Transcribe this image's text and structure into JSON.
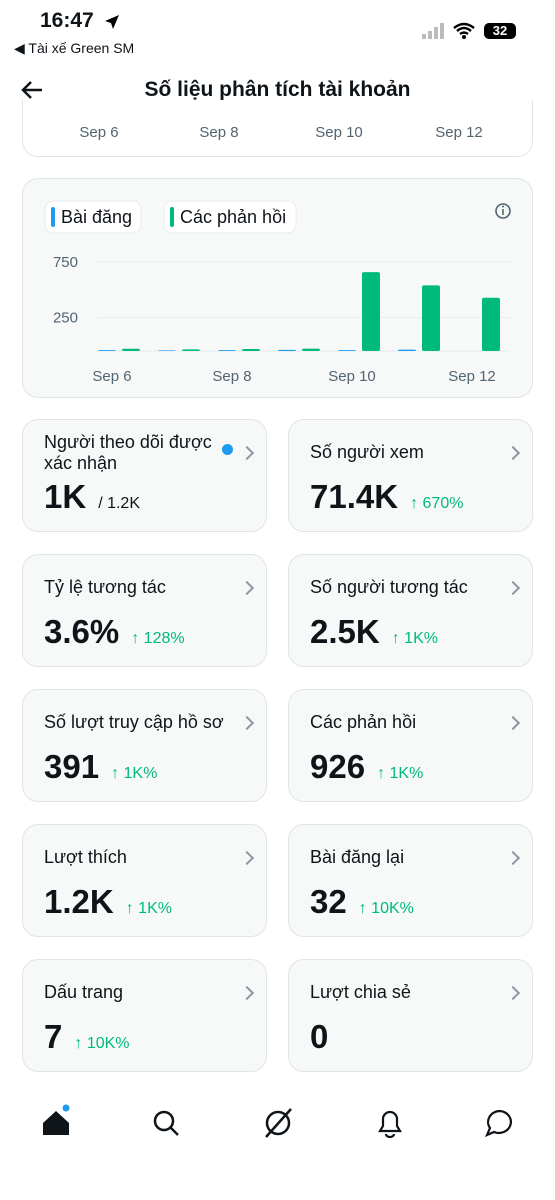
{
  "status_bar": {
    "time": "16:47",
    "back_app": "Tài xế Green SM",
    "battery": "32"
  },
  "header": {
    "title": "Số liệu phân tích tài khoản"
  },
  "top_chart": {
    "x_labels": [
      "Sep 6",
      "Sep 8",
      "Sep 10",
      "Sep 12"
    ]
  },
  "chart_data": {
    "type": "bar",
    "categories": [
      "Sep 6",
      null,
      "Sep 8",
      null,
      "Sep 10",
      null,
      "Sep 12"
    ],
    "series": [
      {
        "name": "Bài đăng",
        "color": "#1d9bf0",
        "values": [
          8,
          6,
          8,
          10,
          8,
          12,
          0
        ]
      },
      {
        "name": "Các phản hồi",
        "color": "#00ba7c",
        "values": [
          20,
          15,
          18,
          22,
          713,
          593,
          481
        ]
      }
    ],
    "ylim": [
      0,
      850
    ],
    "yticks": [
      250,
      750
    ],
    "grid": true
  },
  "metrics": [
    {
      "title": "Người theo dõi được xác nhận",
      "value": "1K",
      "suffix": "/ 1.2K"
    },
    {
      "title": "Số người xem",
      "value": "71.4K",
      "change": "670%"
    },
    {
      "title": "Tỷ lệ tương tác",
      "value": "3.6%",
      "change": "128%"
    },
    {
      "title": "Số người tương tác",
      "value": "2.5K",
      "change": "1K%"
    },
    {
      "title": "Số lượt truy cập hồ sơ",
      "value": "391",
      "change": "1K%"
    },
    {
      "title": "Các phản hồi",
      "value": "926",
      "change": "1K%"
    },
    {
      "title": "Lượt thích",
      "value": "1.2K",
      "change": "1K%"
    },
    {
      "title": "Bài đăng lại",
      "value": "32",
      "change": "10K%"
    },
    {
      "title": "Dấu trang",
      "value": "7",
      "change": "10K%"
    },
    {
      "title": "Lượt chia sẻ",
      "value": "0"
    }
  ]
}
